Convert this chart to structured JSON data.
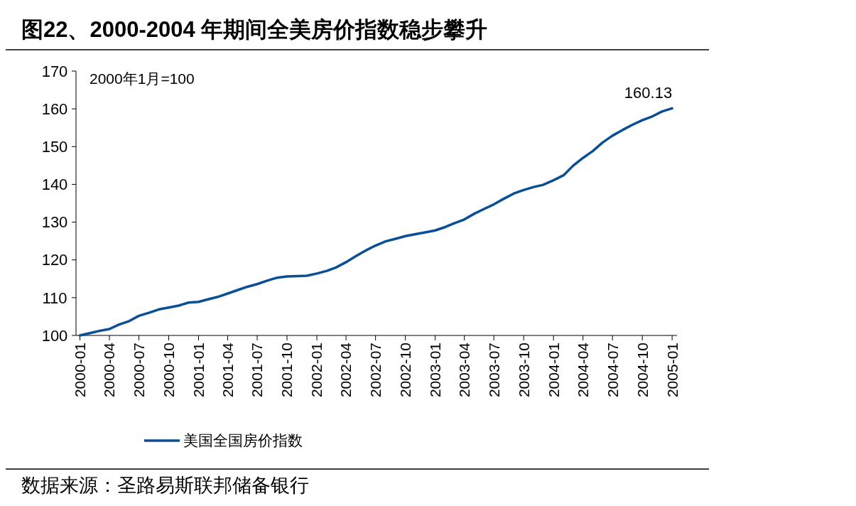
{
  "chart_data": {
    "type": "line",
    "title": "图22、2000-2004 年期间全美房价指数稳步攀升",
    "x": [
      "2000-01",
      "2000-02",
      "2000-03",
      "2000-04",
      "2000-05",
      "2000-06",
      "2000-07",
      "2000-08",
      "2000-09",
      "2000-10",
      "2000-11",
      "2000-12",
      "2001-01",
      "2001-02",
      "2001-03",
      "2001-04",
      "2001-05",
      "2001-06",
      "2001-07",
      "2001-08",
      "2001-09",
      "2001-10",
      "2001-11",
      "2001-12",
      "2002-01",
      "2002-02",
      "2002-03",
      "2002-04",
      "2002-05",
      "2002-06",
      "2002-07",
      "2002-08",
      "2002-09",
      "2002-10",
      "2002-11",
      "2002-12",
      "2003-01",
      "2003-02",
      "2003-03",
      "2003-04",
      "2003-05",
      "2003-06",
      "2003-07",
      "2003-08",
      "2003-09",
      "2003-10",
      "2003-11",
      "2003-12",
      "2004-01",
      "2004-02",
      "2004-03",
      "2004-04",
      "2004-05",
      "2004-06",
      "2004-07",
      "2004-08",
      "2004-09",
      "2004-10",
      "2004-11",
      "2004-12",
      "2005-01"
    ],
    "series": [
      {
        "name": "美国全国房价指数",
        "color": "#0a4f96",
        "values": [
          100,
          100.6,
          101.2,
          101.7,
          102.9,
          103.8,
          105.2,
          106.0,
          106.9,
          107.4,
          107.9,
          108.7,
          108.9,
          109.6,
          110.2,
          111.1,
          112.0,
          112.9,
          113.6,
          114.5,
          115.3,
          115.6,
          115.7,
          115.8,
          116.4,
          117.1,
          118.0,
          119.4,
          121.0,
          122.5,
          123.8,
          124.9,
          125.6,
          126.3,
          126.8,
          127.3,
          127.8,
          128.7,
          129.7,
          130.7,
          132.2,
          133.5,
          134.7,
          136.2,
          137.6,
          138.5,
          139.3,
          139.9,
          141.1,
          142.4,
          144.9,
          147.0,
          148.8,
          151.1,
          152.9,
          154.4,
          155.8,
          157.0,
          158.0,
          159.3,
          160.13
        ]
      }
    ],
    "ylim": [
      100,
      170
    ],
    "yticks": [
      100,
      110,
      120,
      130,
      140,
      150,
      160,
      170
    ],
    "xlim": [
      "1999-12-20",
      "2005-01-16"
    ],
    "xticks": [
      {
        "value": "2000-01",
        "label": "2000-01"
      },
      {
        "value": "2000-04",
        "label": "2000-04"
      },
      {
        "value": "2000-07",
        "label": "2000-07"
      },
      {
        "value": "2000-10",
        "label": "2000-10"
      },
      {
        "value": "2001-01",
        "label": "2001-01"
      },
      {
        "value": "2001-04",
        "label": "2001-04"
      },
      {
        "value": "2001-07",
        "label": "2001-07"
      },
      {
        "value": "2001-10",
        "label": "2001-10"
      },
      {
        "value": "2002-01",
        "label": "2002-01"
      },
      {
        "value": "2002-04",
        "label": "2002-04"
      },
      {
        "value": "2002-07",
        "label": "2002-07"
      },
      {
        "value": "2002-10",
        "label": "2002-10"
      },
      {
        "value": "2003-01",
        "label": "2003-01"
      },
      {
        "value": "2003-04",
        "label": "2003-04"
      },
      {
        "value": "2003-07",
        "label": "2003-07"
      },
      {
        "value": "2003-10",
        "label": "2003-10"
      },
      {
        "value": "2004-01",
        "label": "2004-01"
      },
      {
        "value": "2004-04",
        "label": "2004-04"
      },
      {
        "value": "2004-07",
        "label": "2004-07"
      },
      {
        "value": "2004-10",
        "label": "2004-10"
      },
      {
        "value": "2005-01",
        "label": "2005-01"
      }
    ],
    "annotations": [
      "2000年1月=100",
      {
        "text": "160.13",
        "x": "2005-01",
        "y": 160.13
      },
      "数据来源：圣路易斯联邦储备银行"
    ],
    "legend": "bottom",
    "grid": false
  }
}
